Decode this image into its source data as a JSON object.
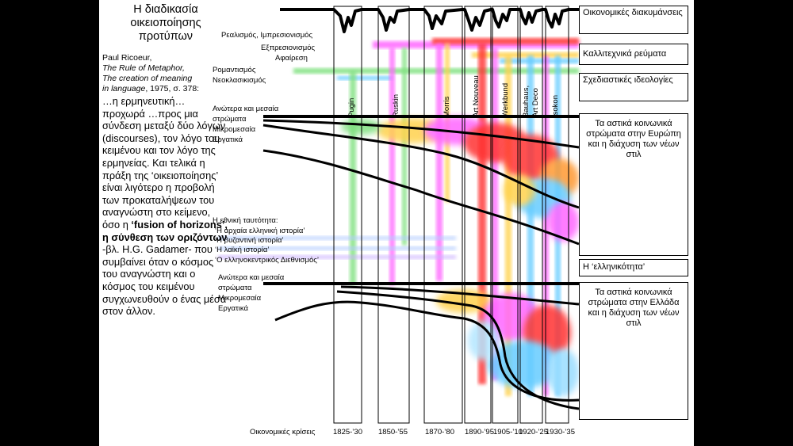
{
  "title": "Η διαδικασία οικειοποίησης προτύπων",
  "citation": {
    "author": "Paul Ricoeur,",
    "work1": "The Rule of Metaphor,",
    "work2": "The creation of meaning",
    "work3": "in language",
    "details": ", 1975, σ. 378:"
  },
  "quote": {
    "part1": "…η ερμηνευτική… προχωρά …προς μια σύνδεση μεταξύ δύο λόγων (discourses), τον λόγο του κειμένου και τον λόγο της ερμηνείας. Και τελικά η πράξη της ‘οικειοποίησης’ είναι λιγότερο η προβολή των προκαταλήψεων του αναγνώστη στο κείμενο, όσο η ",
    "bold": "‘fusion of horizons’, η σύνθεση των οριζόντων",
    "part2": " -βλ. H.G. Gadamer- που συμβαίνει όταν ο κόσμος του αναγνώστη και ο κόσμος του κειμένου συγχωνευθούν ο ένας μέσα στον άλλον."
  },
  "labels": {
    "realism": "Ρεαλισμός, Ιμπρεσιονισμός",
    "expressionism": "Εξπρεσιονισμός",
    "abstraction": "Αφαίρεση",
    "romanticism": "Ρομαντισμός",
    "neoclassicism": "Νεοκλασικισμός",
    "upper_eu": "Ανώτερα και μεσαία",
    "strata_eu": "στρώματα",
    "petty_eu": "Μικρομεσαία",
    "working_eu": "Εργατικά",
    "national_identity": "Η εθνική ταυτότητα:",
    "ancient": "‘Η αρχαία ελληνική ιστορία’",
    "byzantine": "‘Η βυζαντινή ιστορία’",
    "folk": "‘Η λαϊκή ιστορία’",
    "helleno": "‘Ο ελληνοκεντρικός Διεθνισμός’",
    "upper_gr": "Ανώτερα και μεσαία",
    "strata_gr": "στρώματα",
    "petty_gr": "Μικρομεσαία",
    "working_gr": "Εργατικά",
    "crises": "Οικονομικές κρίσεις"
  },
  "movements": [
    "Pugin",
    "Ruskin",
    "Morris",
    "Art Nouveau",
    "Werkbund",
    "Bauhaus,",
    "Art Deco",
    "Isokon"
  ],
  "periods": [
    "1825-’30",
    "1850-’55",
    "1870-’80",
    "1890-’95",
    "1905-’10",
    "1920-’25",
    "1930-’35"
  ],
  "boxes": {
    "economic": "Οικονομικές διακυμάνσεις",
    "artistic": "Καλλιτεχνικά ρεύματα",
    "design": "Σχεδιαστικές ιδεολογίες",
    "europe": "Τα αστικά κοινωνικά στρώματα στην Ευρώπη και η διάχυση των νέων στιλ",
    "hellenicity": "Η ‘ελληνικότητα’",
    "greece": "Τα αστικά κοινωνικά στρώματα στην Ελλάδα και η διάχυση των νέων στιλ"
  },
  "colors": {
    "romanticism_band": "#7fe07f",
    "realism_band": "#ff66ff",
    "expressionism_band": "#ffd24d",
    "abstraction_band": "#66ccff",
    "red_column": "#ff3333",
    "identity_band": "#b3ccff"
  }
}
